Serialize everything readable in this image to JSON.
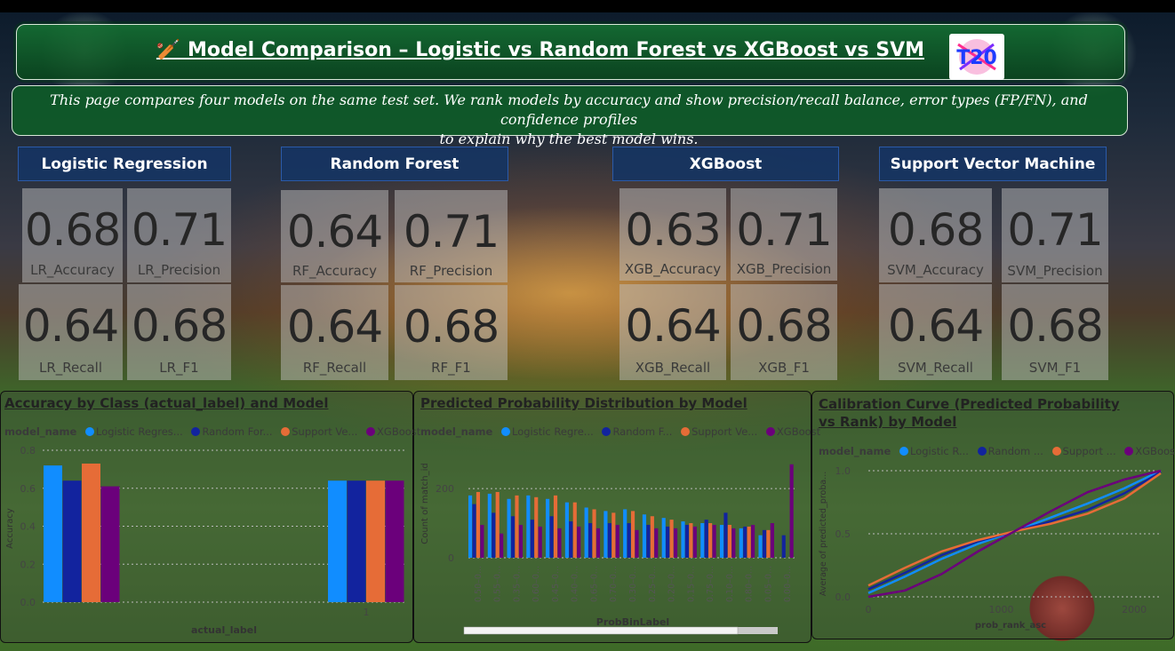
{
  "header": {
    "title": "🏏 Model Comparison – Logistic vs Random Forest vs XGBoost vs SVM"
  },
  "description": {
    "line1": "This page compares four models on the same test set. We rank models by accuracy and show precision/recall balance, error types (FP/FN), and confidence profiles",
    "line2": "to explain why the best model wins."
  },
  "models": [
    {
      "name": "Logistic Regression",
      "cards": [
        {
          "value": "0.68",
          "label": "LR_Accuracy"
        },
        {
          "value": "0.71",
          "label": "LR_Precision"
        },
        {
          "value": "0.64",
          "label": "LR_Recall"
        },
        {
          "value": "0.68",
          "label": "LR_F1"
        }
      ]
    },
    {
      "name": "Random Forest",
      "cards": [
        {
          "value": "0.64",
          "label": "RF_Accuracy"
        },
        {
          "value": "0.71",
          "label": "RF_Precision"
        },
        {
          "value": "0.64",
          "label": "RF_Recall"
        },
        {
          "value": "0.68",
          "label": "RF_F1"
        }
      ]
    },
    {
      "name": "XGBoost",
      "cards": [
        {
          "value": "0.63",
          "label": "XGB_Accuracy"
        },
        {
          "value": "0.71",
          "label": "XGB_Precision"
        },
        {
          "value": "0.64",
          "label": "XGB_Recall"
        },
        {
          "value": "0.68",
          "label": "XGB_F1"
        }
      ]
    },
    {
      "name": "Support Vector Machine",
      "cards": [
        {
          "value": "0.68",
          "label": "SVM_Accuracy"
        },
        {
          "value": "0.71",
          "label": "SVM_Precision"
        },
        {
          "value": "0.64",
          "label": "SVM_Recall"
        },
        {
          "value": "0.68",
          "label": "SVM_F1"
        }
      ]
    }
  ],
  "colors": {
    "logistic": "#118dff",
    "random_forest": "#12239e",
    "support_vector": "#e66c37",
    "xgboost": "#6b007b"
  },
  "chart_data": [
    {
      "type": "bar",
      "title": "Accuracy by Class (actual_label) and Model",
      "legend_title": "model_name",
      "legend_labels": [
        "Logistic Regres...",
        "Random For...",
        "Support Ve...",
        "XGBoost"
      ],
      "xlabel": "actual_label",
      "ylabel": "Accuracy",
      "categories": [
        "0",
        "1"
      ],
      "category_labels": [
        "",
        "1"
      ],
      "yticks": [
        "0.0",
        "0.2",
        "0.4",
        "0.6",
        "0.8"
      ],
      "ylim": [
        0,
        0.8
      ],
      "series": [
        {
          "name": "Logistic Regression",
          "values": [
            0.72,
            0.64
          ]
        },
        {
          "name": "Random Forest",
          "values": [
            0.64,
            0.64
          ]
        },
        {
          "name": "Support Vector Machine",
          "values": [
            0.73,
            0.64
          ]
        },
        {
          "name": "XGBoost",
          "values": [
            0.61,
            0.64
          ]
        }
      ]
    },
    {
      "type": "bar",
      "title": "Predicted Probability Distribution by Model",
      "legend_title": "model_name",
      "legend_labels": [
        "Logistic Regre...",
        "Random F...",
        "Support Ve...",
        "XGBoost"
      ],
      "xlabel": "ProbBinLabel",
      "ylabel": "Count of match_id",
      "yticks": [
        "0",
        "200"
      ],
      "ylim": [
        0,
        290
      ],
      "categories": [
        "0.50–0...",
        "0.55–0...",
        "0.35–0...",
        "0.60–0...",
        "0.45–0...",
        "0.40–0...",
        "0.65–0...",
        "0.70–0...",
        "0.30–0...",
        "0.25–0...",
        "0.20–0...",
        "0.15–0...",
        "0.75–0...",
        "0.10–0...",
        "0.80–0...",
        "0.05–0...",
        "0.00–0..."
      ],
      "series": [
        {
          "name": "Logistic Regression",
          "values": [
            180,
            185,
            170,
            180,
            170,
            160,
            145,
            135,
            140,
            125,
            115,
            105,
            100,
            95,
            85,
            65,
            0
          ]
        },
        {
          "name": "Random Forest",
          "values": [
            155,
            130,
            120,
            110,
            120,
            105,
            100,
            100,
            100,
            95,
            90,
            95,
            110,
            130,
            90,
            80,
            65
          ]
        },
        {
          "name": "Support Vector Machine",
          "values": [
            190,
            190,
            180,
            175,
            180,
            160,
            140,
            130,
            135,
            120,
            110,
            100,
            100,
            95,
            90,
            80,
            0
          ]
        },
        {
          "name": "XGBoost",
          "values": [
            95,
            70,
            95,
            90,
            85,
            90,
            85,
            95,
            80,
            85,
            85,
            90,
            95,
            85,
            95,
            100,
            270
          ]
        }
      ]
    },
    {
      "type": "line",
      "title": "Calibration Curve (Predicted Probability vs Rank) by Model",
      "title_line1": "Calibration Curve (Predicted Probability",
      "title_line2": "vs Rank) by Model",
      "legend_title": "model_name",
      "legend_labels": [
        "Logistic R...",
        "Random ...",
        "Support ...",
        "XGBoost"
      ],
      "xlabel": "prob_rank_asc",
      "ylabel": "Average of predicted_proba...",
      "xticks": [
        "0",
        "1000",
        "2000"
      ],
      "yticks": [
        "0.0",
        "0.5",
        "1.0"
      ],
      "xlim": [
        0,
        2200
      ],
      "ylim": [
        0,
        1
      ],
      "series": [
        {
          "name": "Logistic Regression",
          "x": [
            0,
            275,
            550,
            825,
            1100,
            1375,
            1650,
            1925,
            2200
          ],
          "y": [
            0.03,
            0.16,
            0.3,
            0.42,
            0.52,
            0.63,
            0.74,
            0.86,
            1.0
          ]
        },
        {
          "name": "Random Forest",
          "x": [
            0,
            275,
            550,
            825,
            1100,
            1375,
            1650,
            1925,
            2200
          ],
          "y": [
            0.06,
            0.19,
            0.33,
            0.44,
            0.52,
            0.6,
            0.69,
            0.82,
            0.99
          ]
        },
        {
          "name": "Support Vector Machine",
          "x": [
            0,
            275,
            550,
            825,
            1100,
            1375,
            1650,
            1925,
            2200
          ],
          "y": [
            0.09,
            0.23,
            0.36,
            0.45,
            0.52,
            0.58,
            0.66,
            0.78,
            0.98
          ]
        },
        {
          "name": "XGBoost",
          "x": [
            0,
            275,
            550,
            825,
            1100,
            1375,
            1650,
            1925,
            2200
          ],
          "y": [
            0.0,
            0.05,
            0.18,
            0.36,
            0.52,
            0.68,
            0.83,
            0.93,
            1.0
          ]
        }
      ]
    }
  ]
}
